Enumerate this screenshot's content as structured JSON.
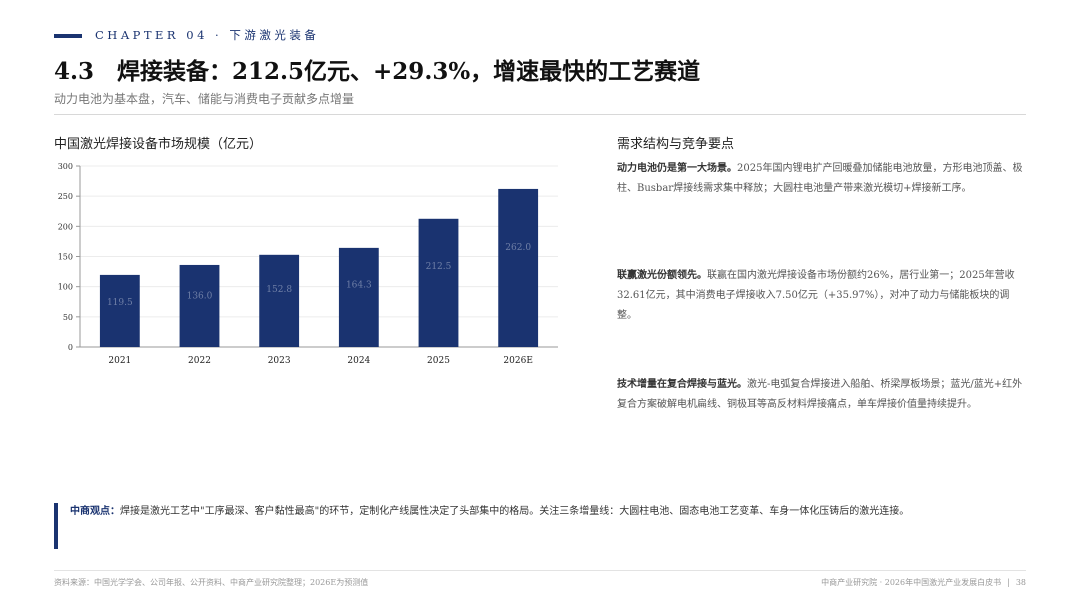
{
  "header": {
    "chapter": "CHAPTER 04 · 下游激光装备",
    "title": "4.3　焊接装备：212.5亿元、+29.3%，增速最快的工艺赛道",
    "subtitle": "动力电池为基本盘，汽车、储能与消费电子贡献多点增量"
  },
  "chart_section_title": "中国激光焊接设备市场规模（亿元）",
  "chart_data": {
    "type": "bar",
    "categories": [
      "2021",
      "2022",
      "2023",
      "2024",
      "2025",
      "2026E"
    ],
    "values": [
      119.5,
      136.0,
      152.8,
      164.3,
      212.5,
      262.0
    ],
    "value_labels": [
      "119.5",
      "136.0",
      "152.8",
      "164.3",
      "212.5",
      "262.0"
    ],
    "yticks": [
      "0",
      "50",
      "100",
      "150",
      "200",
      "250",
      "300"
    ],
    "ylim": [
      0,
      300
    ],
    "grid": true,
    "bar_color": "#1a3370",
    "label_color": "#6f7fa6"
  },
  "right": {
    "title": "需求结构与竞争要点",
    "points": [
      {
        "lead": "动力电池仍是第一大场景。",
        "text": "2025年国内锂电扩产回暖叠加储能电池放量，方形电池顶盖、极柱、Busbar焊接线需求集中释放；大圆柱电池量产带来激光模切+焊接新工序。"
      },
      {
        "lead": "联赢激光份额领先。",
        "text": "联赢在国内激光焊接设备市场份额约26%，居行业第一；2025年营收32.61亿元，其中消费电子焊接收入7.50亿元（+35.97%），对冲了动力与储能板块的调整。"
      },
      {
        "lead": "技术增量在复合焊接与蓝光。",
        "text": "激光-电弧复合焊接进入船舶、桥梁厚板场景；蓝光/蓝光+红外复合方案破解电机扁线、铜极耳等高反材料焊接痛点，单车焊接价值量持续提升。"
      }
    ]
  },
  "insight": {
    "label": "中商观点：",
    "text": "焊接是激光工艺中\"工序最深、客户黏性最高\"的环节，定制化产线属性决定了头部集中的格局。关注三条增量线：大圆柱电池、固态电池工艺变革、车身一体化压铸后的激光连接。"
  },
  "footer": {
    "source": "资料来源：中国光学学会、公司年报、公开资料、中商产业研究院整理；2026E为预测值",
    "org": "中商产业研究院 · 2026年中国激光产业发展白皮书",
    "page": "38"
  }
}
